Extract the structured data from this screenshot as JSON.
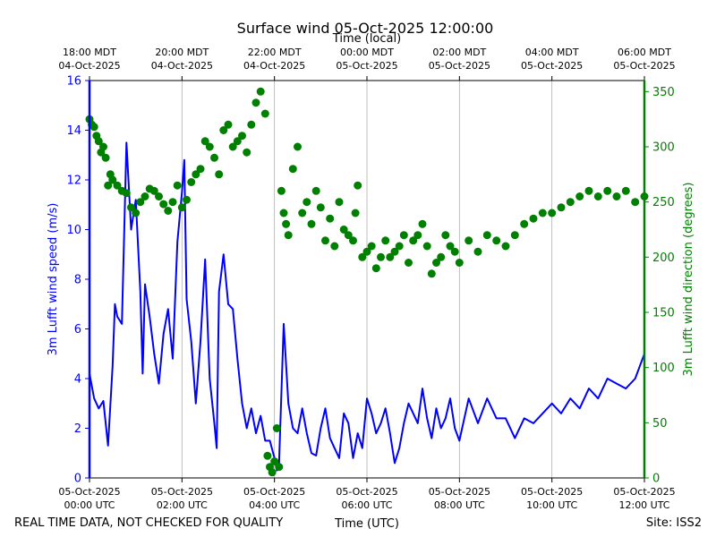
{
  "chart_data": {
    "type": "line",
    "title": "Surface wind 05-Oct-2025 12:00:00",
    "xlabel_bottom": "Time (UTC)",
    "xlabel_top": "Time (local)",
    "ylabel_left": "3m Lufft wind speed (m/s)",
    "ylabel_right": "3m Lufft wind direction (degrees)",
    "footer_left": "REAL TIME DATA, NOT CHECKED FOR QUALITY",
    "footer_right": "Site: ISS2",
    "colors": {
      "speed": "#0000ff",
      "direction": "#008000",
      "grid": "#b0b0b0",
      "axis": "#000000"
    },
    "x_range_hours": [
      0,
      12
    ],
    "y_left_range": [
      0,
      16
    ],
    "y_right_range": [
      0,
      360
    ],
    "grid": true,
    "y_left_ticks": [
      0,
      2,
      4,
      6,
      8,
      10,
      12,
      14,
      16
    ],
    "y_right_ticks": [
      0,
      50,
      100,
      150,
      200,
      250,
      300,
      350
    ],
    "x_ticks_bottom": [
      {
        "h": 0,
        "line1": "05-Oct-2025",
        "line2": "00:00 UTC"
      },
      {
        "h": 2,
        "line1": "05-Oct-2025",
        "line2": "02:00 UTC"
      },
      {
        "h": 4,
        "line1": "05-Oct-2025",
        "line2": "04:00 UTC"
      },
      {
        "h": 6,
        "line1": "05-Oct-2025",
        "line2": "06:00 UTC"
      },
      {
        "h": 8,
        "line1": "05-Oct-2025",
        "line2": "08:00 UTC"
      },
      {
        "h": 10,
        "line1": "05-Oct-2025",
        "line2": "10:00 UTC"
      },
      {
        "h": 12,
        "line1": "05-Oct-2025",
        "line2": "12:00 UTC"
      }
    ],
    "x_ticks_top": [
      {
        "h": 0,
        "line1": "18:00 MDT",
        "line2": "04-Oct-2025"
      },
      {
        "h": 2,
        "line1": "20:00 MDT",
        "line2": "04-Oct-2025"
      },
      {
        "h": 4,
        "line1": "22:00 MDT",
        "line2": "04-Oct-2025"
      },
      {
        "h": 6,
        "line1": "00:00 MDT",
        "line2": "05-Oct-2025"
      },
      {
        "h": 8,
        "line1": "02:00 MDT",
        "line2": "05-Oct-2025"
      },
      {
        "h": 10,
        "line1": "04:00 MDT",
        "line2": "05-Oct-2025"
      },
      {
        "h": 12,
        "line1": "06:00 MDT",
        "line2": "05-Oct-2025"
      }
    ],
    "series": [
      {
        "name": "3m Lufft wind speed",
        "axis": "left",
        "style": "line",
        "x": [
          0,
          0.1,
          0.2,
          0.3,
          0.4,
          0.5,
          0.55,
          0.6,
          0.7,
          0.8,
          0.9,
          1.0,
          1.1,
          1.15,
          1.2,
          1.3,
          1.4,
          1.5,
          1.6,
          1.7,
          1.8,
          1.9,
          2.0,
          2.05,
          2.1,
          2.2,
          2.3,
          2.4,
          2.5,
          2.6,
          2.7,
          2.75,
          2.8,
          2.9,
          3.0,
          3.1,
          3.2,
          3.3,
          3.4,
          3.5,
          3.6,
          3.7,
          3.8,
          3.9,
          4.0,
          4.05,
          4.1,
          4.2,
          4.3,
          4.4,
          4.5,
          4.6,
          4.7,
          4.8,
          4.9,
          5.0,
          5.1,
          5.2,
          5.3,
          5.4,
          5.5,
          5.6,
          5.7,
          5.8,
          5.9,
          6.0,
          6.1,
          6.2,
          6.3,
          6.4,
          6.5,
          6.6,
          6.7,
          6.8,
          6.9,
          7.0,
          7.1,
          7.2,
          7.3,
          7.4,
          7.5,
          7.6,
          7.7,
          7.8,
          7.9,
          8.0,
          8.2,
          8.4,
          8.6,
          8.8,
          9.0,
          9.2,
          9.4,
          9.6,
          9.8,
          10.0,
          10.2,
          10.4,
          10.6,
          10.8,
          11.0,
          11.2,
          11.4,
          11.6,
          11.8,
          12.0
        ],
        "values": [
          4.2,
          3.2,
          2.8,
          3.1,
          1.3,
          4.5,
          7.0,
          6.5,
          6.2,
          13.5,
          10.0,
          11.2,
          7.5,
          4.2,
          7.8,
          6.5,
          5.0,
          3.8,
          5.8,
          6.8,
          4.8,
          9.5,
          11.5,
          12.8,
          7.2,
          5.5,
          3.0,
          5.5,
          8.8,
          4.0,
          2.2,
          1.2,
          7.5,
          9.0,
          7.0,
          6.8,
          4.8,
          3.0,
          2.0,
          2.8,
          1.8,
          2.5,
          1.5,
          1.5,
          0.8,
          0.3,
          0.6,
          6.2,
          3.0,
          2.0,
          1.8,
          2.8,
          1.8,
          1.0,
          0.9,
          2.0,
          2.8,
          1.6,
          1.2,
          0.8,
          2.6,
          2.2,
          0.8,
          1.8,
          1.2,
          3.2,
          2.6,
          1.8,
          2.2,
          2.8,
          1.8,
          0.6,
          1.2,
          2.2,
          3.0,
          2.6,
          2.2,
          3.6,
          2.4,
          1.6,
          2.8,
          2.0,
          2.4,
          3.2,
          2.0,
          1.5,
          3.2,
          2.2,
          3.2,
          2.4,
          2.4,
          1.6,
          2.4,
          2.2,
          2.6,
          3.0,
          2.6,
          3.2,
          2.8,
          3.6,
          3.2,
          4.0,
          3.8,
          3.6,
          4.0,
          5.0
        ]
      },
      {
        "name": "3m Lufft wind direction",
        "axis": "right",
        "style": "scatter",
        "x": [
          0,
          0.05,
          0.1,
          0.15,
          0.2,
          0.25,
          0.3,
          0.35,
          0.4,
          0.45,
          0.5,
          0.6,
          0.7,
          0.8,
          0.9,
          1.0,
          1.1,
          1.2,
          1.3,
          1.4,
          1.5,
          1.6,
          1.7,
          1.8,
          1.9,
          2.0,
          2.1,
          2.2,
          2.3,
          2.4,
          2.5,
          2.6,
          2.7,
          2.8,
          2.9,
          3.0,
          3.1,
          3.2,
          3.3,
          3.4,
          3.5,
          3.6,
          3.7,
          3.8,
          3.85,
          3.9,
          3.95,
          4.0,
          4.05,
          4.1,
          4.15,
          4.2,
          4.25,
          4.3,
          4.4,
          4.5,
          4.6,
          4.7,
          4.8,
          4.9,
          5.0,
          5.1,
          5.2,
          5.3,
          5.4,
          5.5,
          5.6,
          5.7,
          5.75,
          5.8,
          5.9,
          6.0,
          6.1,
          6.2,
          6.3,
          6.4,
          6.5,
          6.6,
          6.7,
          6.8,
          6.9,
          7.0,
          7.1,
          7.2,
          7.3,
          7.4,
          7.5,
          7.6,
          7.7,
          7.8,
          7.9,
          8.0,
          8.2,
          8.4,
          8.6,
          8.8,
          9.0,
          9.2,
          9.4,
          9.6,
          9.8,
          10.0,
          10.2,
          10.4,
          10.6,
          10.8,
          11.0,
          11.2,
          11.4,
          11.6,
          11.8,
          12.0
        ],
        "values": [
          325,
          320,
          318,
          310,
          305,
          295,
          300,
          290,
          265,
          275,
          270,
          265,
          260,
          258,
          245,
          240,
          250,
          255,
          262,
          260,
          255,
          248,
          242,
          250,
          265,
          245,
          252,
          268,
          275,
          280,
          305,
          300,
          290,
          275,
          315,
          320,
          300,
          305,
          310,
          295,
          320,
          340,
          350,
          330,
          20,
          10,
          5,
          15,
          45,
          10,
          260,
          240,
          230,
          220,
          280,
          300,
          240,
          250,
          230,
          260,
          245,
          215,
          235,
          210,
          250,
          225,
          220,
          215,
          240,
          265,
          200,
          205,
          210,
          190,
          200,
          215,
          200,
          205,
          210,
          220,
          195,
          215,
          220,
          230,
          210,
          185,
          195,
          200,
          220,
          210,
          205,
          195,
          215,
          205,
          220,
          215,
          210,
          220,
          230,
          235,
          240,
          240,
          245,
          250,
          255,
          260,
          255,
          260,
          255,
          260,
          250,
          255
        ]
      }
    ]
  }
}
